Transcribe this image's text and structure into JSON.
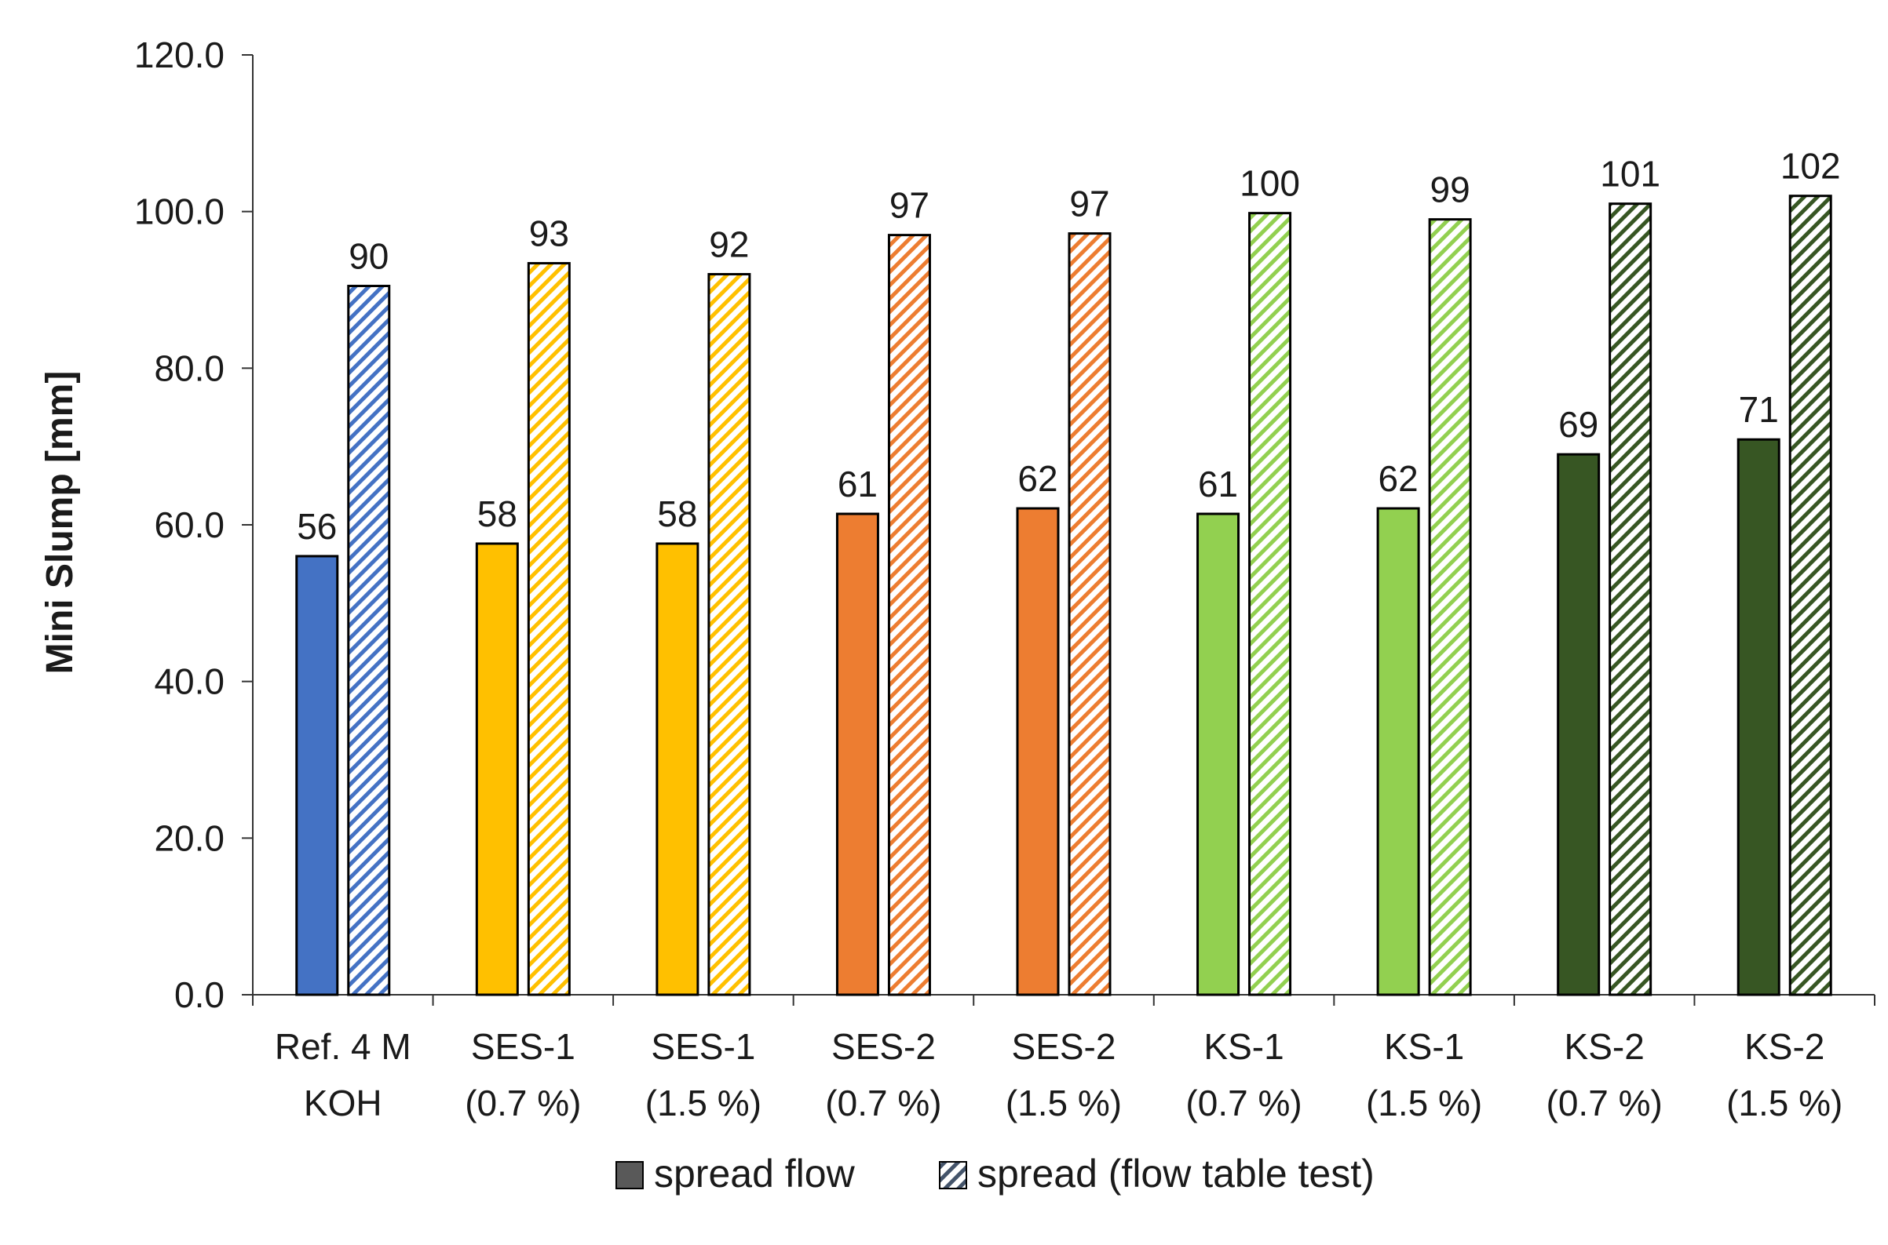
{
  "chart_data": {
    "type": "bar",
    "ylabel": "Mini Slump [mm]",
    "xlabel": "",
    "ylim": [
      0,
      120
    ],
    "yticks": [
      0,
      20,
      40,
      60,
      80,
      100,
      120
    ],
    "ytick_labels": [
      "0.0",
      "20.0",
      "40.0",
      "60.0",
      "80.0",
      "100.0",
      "120.0"
    ],
    "grid": false,
    "legend_position": "bottom",
    "categories": [
      [
        "Ref. 4 M",
        "KOH"
      ],
      [
        "SES-1",
        "(0.7 %)"
      ],
      [
        "SES-1",
        "(1.5 %)"
      ],
      [
        "SES-2",
        "(0.7 %)"
      ],
      [
        "SES-2",
        "(1.5 %)"
      ],
      [
        "KS-1",
        "(0.7 %)"
      ],
      [
        "KS-1",
        "(1.5 %)"
      ],
      [
        "KS-2",
        "(0.7 %)"
      ],
      [
        "KS-2",
        "(1.5 %)"
      ]
    ],
    "category_colors": [
      "#4472c4",
      "#ffc000",
      "#ffc000",
      "#ed7d31",
      "#ed7d31",
      "#92d050",
      "#92d050",
      "#375623",
      "#375623"
    ],
    "series": [
      {
        "name": "spread flow",
        "style": "solid",
        "values": [
          56,
          57.6,
          57.6,
          61.4,
          62.1,
          61.4,
          62.1,
          69,
          70.9
        ],
        "labels": [
          "56",
          "58",
          "58",
          "61",
          "62",
          "61",
          "62",
          "69",
          "71"
        ]
      },
      {
        "name": "spread (flow table test)",
        "style": "hatched",
        "values": [
          90.5,
          93.4,
          92,
          97,
          97.2,
          99.8,
          99,
          101,
          102
        ],
        "labels": [
          "90",
          "93",
          "92",
          "97",
          "97",
          "100",
          "99",
          "101",
          "102"
        ]
      }
    ],
    "legend_colors": {
      "spread flow": "#595959",
      "spread (flow table test)": "#44546a"
    }
  }
}
